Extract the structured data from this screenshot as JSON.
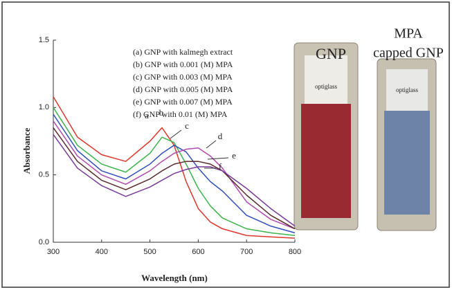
{
  "chart_data": {
    "type": "line",
    "x_label": "Wavelength (nm)",
    "y_label": "Absorbance",
    "x": [
      300,
      350,
      400,
      450,
      500,
      525,
      550,
      575,
      600,
      625,
      650,
      700,
      750,
      800
    ],
    "series": [
      {
        "name": "(a) GNP with kalmegh extract",
        "label": "a",
        "color": "#e0352b",
        "values": [
          1.08,
          0.78,
          0.65,
          0.6,
          0.75,
          0.85,
          0.72,
          0.45,
          0.25,
          0.15,
          0.1,
          0.05,
          0.04,
          0.03
        ]
      },
      {
        "name": "(b) GNP with 0.001 (M) MPA",
        "label": "b",
        "color": "#3cb44b",
        "values": [
          1.0,
          0.72,
          0.58,
          0.52,
          0.66,
          0.78,
          0.74,
          0.58,
          0.4,
          0.27,
          0.18,
          0.1,
          0.07,
          0.05
        ]
      },
      {
        "name": "(c) GNP with 0.003 (M) MPA",
        "label": "c",
        "color": "#2f4fbf",
        "values": [
          0.95,
          0.68,
          0.53,
          0.47,
          0.58,
          0.66,
          0.72,
          0.67,
          0.55,
          0.45,
          0.38,
          0.2,
          0.12,
          0.07
        ]
      },
      {
        "name": "(d) GNP with 0.005 (M) MPA",
        "label": "d",
        "color": "#b04ab0",
        "values": [
          0.9,
          0.64,
          0.5,
          0.43,
          0.53,
          0.6,
          0.66,
          0.69,
          0.7,
          0.64,
          0.55,
          0.3,
          0.17,
          0.1
        ]
      },
      {
        "name": "(e) GNP with 0.007 (M) MPA",
        "label": "e",
        "color": "#5a2a2a",
        "values": [
          0.85,
          0.6,
          0.46,
          0.39,
          0.47,
          0.53,
          0.58,
          0.6,
          0.6,
          0.58,
          0.53,
          0.35,
          0.2,
          0.1
        ]
      },
      {
        "name": "(f) GNP with 0.01 (M) MPA",
        "label": "f",
        "color": "#7a3a9a",
        "values": [
          0.8,
          0.55,
          0.42,
          0.34,
          0.41,
          0.46,
          0.51,
          0.54,
          0.56,
          0.56,
          0.53,
          0.4,
          0.25,
          0.12
        ]
      }
    ],
    "xlim": [
      300,
      800
    ],
    "xticks": [
      300,
      400,
      500,
      600,
      700,
      800
    ],
    "ylim": [
      0,
      1.5
    ],
    "yticks": [
      {
        "value": 0,
        "label": "0.0"
      },
      0.5,
      {
        "value": 1,
        "label": "1.0"
      },
      1.5
    ]
  },
  "photo": {
    "left_label": "GNP",
    "right_label_lines": [
      "MPA",
      "capped GNP"
    ],
    "cuvette_text": "optiglass"
  }
}
